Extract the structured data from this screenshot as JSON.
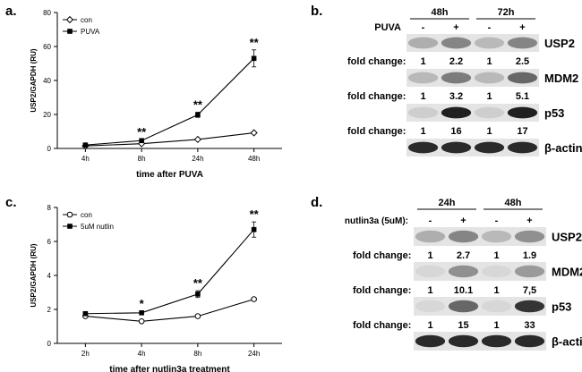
{
  "panel_labels": {
    "a": "a.",
    "b": "b.",
    "c": "c.",
    "d": "d."
  },
  "chart_data": [
    {
      "panel": "a",
      "type": "line",
      "categories": [
        "4h",
        "8h",
        "24h",
        "48h"
      ],
      "series": [
        {
          "name": "con",
          "values": [
            1.5,
            2.8,
            5.3,
            9.2
          ],
          "marker": "open-diamond",
          "errors": [
            0.3,
            0.3,
            0.5,
            0.6
          ]
        },
        {
          "name": "PUVA",
          "values": [
            2.0,
            4.6,
            19.8,
            53.0
          ],
          "marker": "filled-square",
          "errors": [
            0.3,
            0.6,
            1.5,
            5.0
          ]
        }
      ],
      "annotations": [
        {
          "category": "8h",
          "text": "**"
        },
        {
          "category": "24h",
          "text": "**"
        },
        {
          "category": "48h",
          "text": "**"
        }
      ],
      "xlabel": "time after PUVA",
      "ylabel": "USP2/GAPDH (RU)",
      "ylim": [
        0,
        80
      ],
      "yticks": [
        0,
        20,
        40,
        60,
        80
      ],
      "legend_position": "top-left",
      "grid": false
    },
    {
      "panel": "c",
      "type": "line",
      "categories": [
        "2h",
        "4h",
        "8h",
        "24h"
      ],
      "series": [
        {
          "name": "con",
          "values": [
            1.6,
            1.3,
            1.6,
            2.6
          ],
          "marker": "open-circle",
          "errors": [
            0.05,
            0.05,
            0.05,
            0.1
          ]
        },
        {
          "name": "5uM nutlin",
          "values": [
            1.75,
            1.8,
            2.9,
            6.7
          ],
          "marker": "filled-square",
          "errors": [
            0.05,
            0.1,
            0.2,
            0.45
          ]
        }
      ],
      "annotations": [
        {
          "category": "4h",
          "text": "*"
        },
        {
          "category": "8h",
          "text": "**"
        },
        {
          "category": "24h",
          "text": "**"
        }
      ],
      "xlabel": "time after nutlin3a treatment",
      "ylabel": "USP2/GAPDH (RU)",
      "ylim": [
        0,
        8
      ],
      "yticks": [
        0,
        2,
        4,
        6,
        8
      ],
      "legend_position": "top-left",
      "grid": false
    }
  ],
  "blot_b": {
    "timepoints": [
      "48h",
      "72h"
    ],
    "treatment_label": "PUVA",
    "lane_signs": [
      "-",
      "+",
      "-",
      "+"
    ],
    "fold_label": "fold change:",
    "rows": [
      {
        "protein": "USP2",
        "fold": [
          "1",
          "2.2",
          "1",
          "2.5"
        ],
        "intensity": [
          0.25,
          0.45,
          0.2,
          0.45
        ]
      },
      {
        "protein": "MDM2",
        "fold": [
          "1",
          "3.2",
          "1",
          "5.1"
        ],
        "intensity": [
          0.2,
          0.5,
          0.2,
          0.6
        ]
      },
      {
        "protein": "p53",
        "fold": [
          "1",
          "16",
          "1",
          "17"
        ],
        "intensity": [
          0.1,
          0.95,
          0.1,
          0.95
        ]
      },
      {
        "protein": "β-actin",
        "fold": null,
        "intensity": [
          0.9,
          0.9,
          0.9,
          0.9
        ]
      }
    ]
  },
  "blot_d": {
    "timepoints": [
      "24h",
      "48h"
    ],
    "treatment_label": "nutlin3a (5uM):",
    "lane_signs": [
      "-",
      "+",
      "-",
      "+"
    ],
    "fold_label": "fold change:",
    "rows": [
      {
        "protein": "USP2",
        "fold": [
          "1",
          "2.7",
          "1",
          "1.9"
        ],
        "intensity": [
          0.25,
          0.45,
          0.2,
          0.4
        ]
      },
      {
        "protein": "MDM2",
        "fold": [
          "1",
          "10.1",
          "1",
          "7,5"
        ],
        "intensity": [
          0.05,
          0.4,
          0.05,
          0.35
        ]
      },
      {
        "protein": "p53",
        "fold": [
          "1",
          "15",
          "1",
          "33"
        ],
        "intensity": [
          0.05,
          0.6,
          0.05,
          0.85
        ]
      },
      {
        "protein": "β-actin",
        "fold": null,
        "intensity": [
          0.9,
          0.9,
          0.9,
          0.9
        ]
      }
    ]
  }
}
